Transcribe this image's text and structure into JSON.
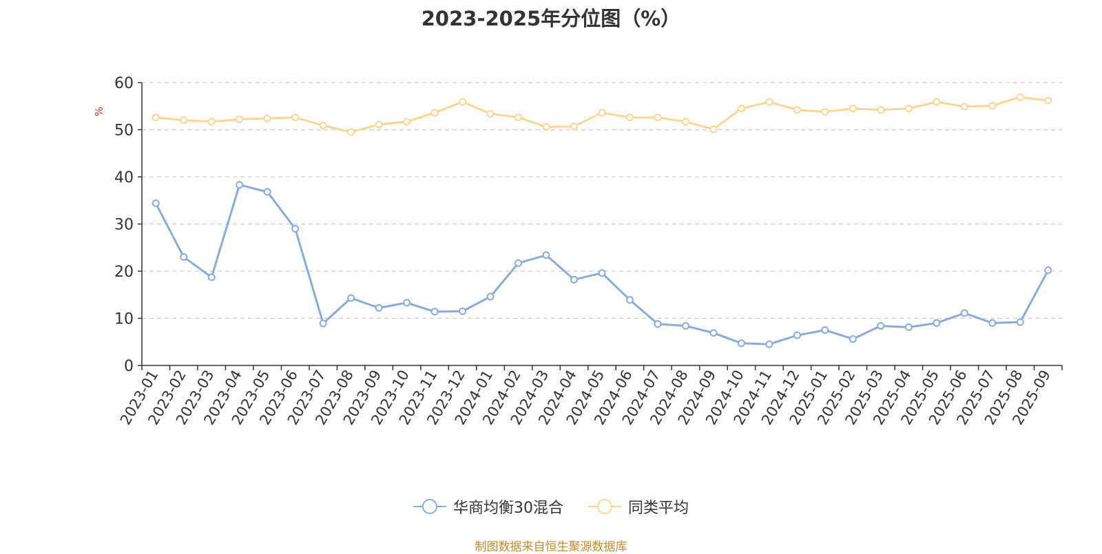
{
  "title": "2023-2025年分位图（%）",
  "source": "制图数据来自恒生聚源数据库",
  "colors": {
    "series1": "#8caad8",
    "series2": "#fad595",
    "grid": "#cccccc",
    "axis": "#333333",
    "unit": "#e03030",
    "source": "#c88a2a"
  },
  "chart_data": {
    "type": "line",
    "title": "2023-2025年分位图（%）",
    "ylabel": "%",
    "ylim": [
      0,
      60
    ],
    "yticks": [
      0,
      10,
      20,
      30,
      40,
      50,
      60
    ],
    "grid": true,
    "legend_position": "bottom-center",
    "categories": [
      "2023-01",
      "2023-02",
      "2023-03",
      "2023-04",
      "2023-05",
      "2023-06",
      "2023-07",
      "2023-08",
      "2023-09",
      "2023-10",
      "2023-11",
      "2023-12",
      "2024-01",
      "2024-02",
      "2024-03",
      "2024-04",
      "2024-05",
      "2024-06",
      "2024-07",
      "2024-08",
      "2024-09",
      "2024-10",
      "2024-11",
      "2024-12",
      "2025-01",
      "2025-02",
      "2025-03",
      "2025-04",
      "2025-05",
      "2025-06",
      "2025-07",
      "2025-08",
      "2025-09"
    ],
    "series": [
      {
        "name": "华商均衡30混合",
        "values": [
          34.4,
          23.0,
          18.7,
          38.3,
          36.8,
          29.0,
          8.9,
          14.3,
          12.2,
          13.3,
          11.4,
          11.5,
          14.6,
          21.7,
          23.4,
          18.2,
          19.6,
          13.9,
          8.8,
          8.4,
          6.9,
          4.7,
          4.5,
          6.4,
          7.5,
          5.6,
          8.4,
          8.1,
          9.0,
          11.1,
          9.0,
          9.2,
          20.2
        ]
      },
      {
        "name": "同类平均",
        "values": [
          52.6,
          52.0,
          51.7,
          52.2,
          52.4,
          52.6,
          50.9,
          49.5,
          51.1,
          51.7,
          53.6,
          55.9,
          53.4,
          52.6,
          50.6,
          50.7,
          53.6,
          52.6,
          52.6,
          51.7,
          50.1,
          54.5,
          55.9,
          54.2,
          53.8,
          54.5,
          54.2,
          54.5,
          55.9,
          54.9,
          55.1,
          56.9,
          56.2
        ]
      }
    ]
  }
}
